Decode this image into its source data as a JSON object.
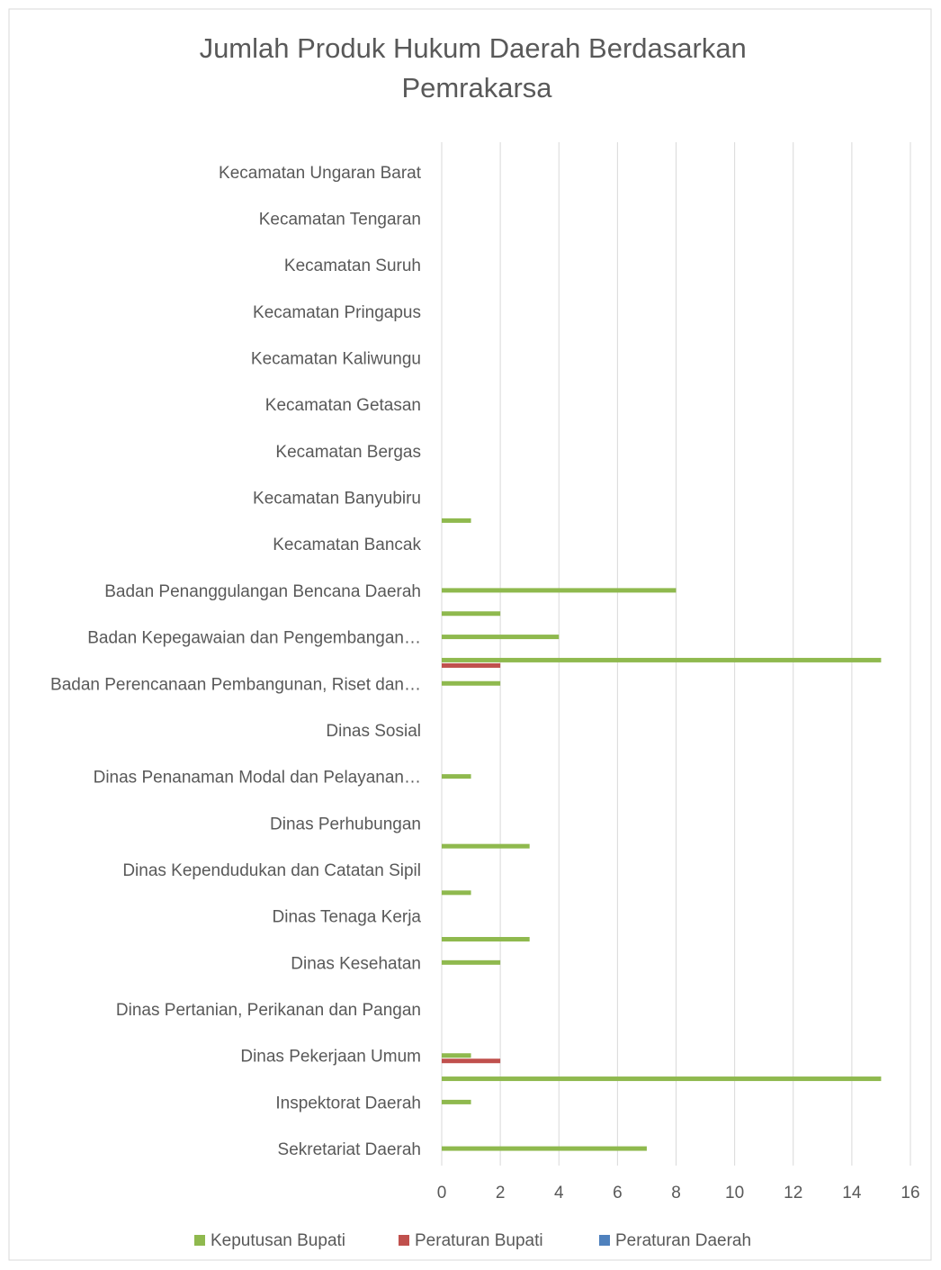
{
  "chart_data": {
    "type": "bar",
    "orientation": "horizontal",
    "title": "Jumlah Produk Hukum Daerah Berdasarkan Pemrakarsa",
    "categories": [
      "Sekretariat Daerah",
      null,
      "Inspektorat Daerah",
      null,
      "Dinas Pekerjaan Umum",
      null,
      "Dinas Pertanian, Perikanan dan Pangan",
      null,
      "Dinas Kesehatan",
      null,
      "Dinas Tenaga Kerja",
      null,
      "Dinas Kependudukan dan Catatan Sipil",
      null,
      "Dinas Perhubungan",
      null,
      "Dinas Penanaman Modal dan Pelayanan…",
      null,
      "Dinas Sosial",
      null,
      "Badan Perencanaan Pembangunan, Riset dan…",
      null,
      "Badan Kepegawaian dan Pengembangan…",
      null,
      "Badan Penanggulangan Bencana Daerah",
      null,
      "Kecamatan Bancak",
      null,
      "Kecamatan Banyubiru",
      null,
      "Kecamatan Bergas",
      null,
      "Kecamatan Getasan",
      null,
      "Kecamatan Kaliwungu",
      null,
      "Kecamatan Pringapus",
      null,
      "Kecamatan Suruh",
      null,
      "Kecamatan Tengaran",
      null,
      "Kecamatan Ungaran Barat",
      null
    ],
    "series": [
      {
        "name": "Keputusan Bupati",
        "color": "#8fb94e",
        "values": [
          7,
          null,
          1,
          15,
          1,
          null,
          null,
          null,
          2,
          3,
          null,
          1,
          null,
          3,
          null,
          null,
          1,
          null,
          null,
          null,
          2,
          15,
          4,
          2,
          8,
          null,
          null,
          1,
          null,
          null,
          null,
          null,
          null,
          null,
          null,
          null,
          null,
          null,
          null,
          null,
          null,
          null,
          null,
          null
        ]
      },
      {
        "name": "Peraturan Bupati",
        "color": "#c0504d",
        "values": [
          null,
          null,
          null,
          null,
          2,
          null,
          null,
          null,
          null,
          null,
          null,
          null,
          null,
          null,
          null,
          null,
          null,
          null,
          null,
          null,
          null,
          2,
          null,
          null,
          null,
          null,
          null,
          null,
          null,
          null,
          null,
          null,
          null,
          null,
          null,
          null,
          null,
          null,
          null,
          null,
          null,
          null,
          null,
          null
        ]
      },
      {
        "name": "Peraturan Daerah",
        "color": "#4f81bd",
        "values": [
          null,
          null,
          null,
          null,
          null,
          null,
          null,
          null,
          null,
          null,
          null,
          null,
          null,
          null,
          null,
          null,
          null,
          null,
          null,
          null,
          null,
          null,
          null,
          null,
          null,
          null,
          null,
          null,
          null,
          null,
          null,
          null,
          null,
          null,
          null,
          null,
          null,
          null,
          null,
          null,
          null,
          null,
          null,
          null
        ]
      }
    ],
    "xlim": [
      0,
      16
    ],
    "xticks": [
      0,
      2,
      4,
      6,
      8,
      10,
      12,
      14,
      16
    ],
    "grid": true,
    "legend": "bottom"
  }
}
